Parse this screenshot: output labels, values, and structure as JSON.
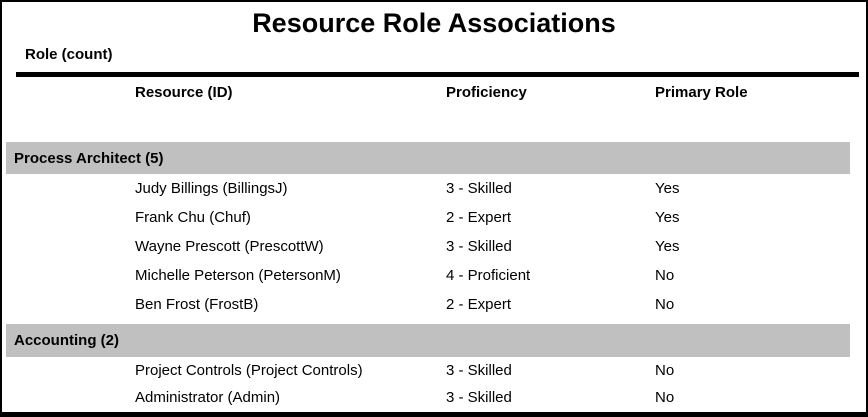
{
  "report": {
    "title": "Resource Role Associations",
    "group_label": "Role (count)",
    "columns": {
      "resource": "Resource (ID)",
      "proficiency": "Proficiency",
      "primary_role": "Primary Role"
    },
    "colors": {
      "section_band": "#c0c0c0",
      "border": "#000000",
      "text": "#000000",
      "background": "#ffffff"
    },
    "groups": [
      {
        "name": "Process Architect (5)",
        "rows": [
          {
            "resource": "Judy Billings (BillingsJ)",
            "proficiency": "3 - Skilled",
            "primary_role": "Yes"
          },
          {
            "resource": "Frank Chu (Chuf)",
            "proficiency": "2 - Expert",
            "primary_role": "Yes"
          },
          {
            "resource": "Wayne Prescott (PrescottW)",
            "proficiency": "3 - Skilled",
            "primary_role": "Yes"
          },
          {
            "resource": "Michelle Peterson (PetersonM)",
            "proficiency": "4 - Proficient",
            "primary_role": "No"
          },
          {
            "resource": "Ben Frost (FrostB)",
            "proficiency": "2 - Expert",
            "primary_role": "No"
          }
        ]
      },
      {
        "name": "Accounting (2)",
        "rows": [
          {
            "resource": "Project Controls (Project Controls)",
            "proficiency": "3 - Skilled",
            "primary_role": "No"
          },
          {
            "resource": "Administrator (Admin)",
            "proficiency": "3 - Skilled",
            "primary_role": "No"
          }
        ]
      }
    ]
  }
}
